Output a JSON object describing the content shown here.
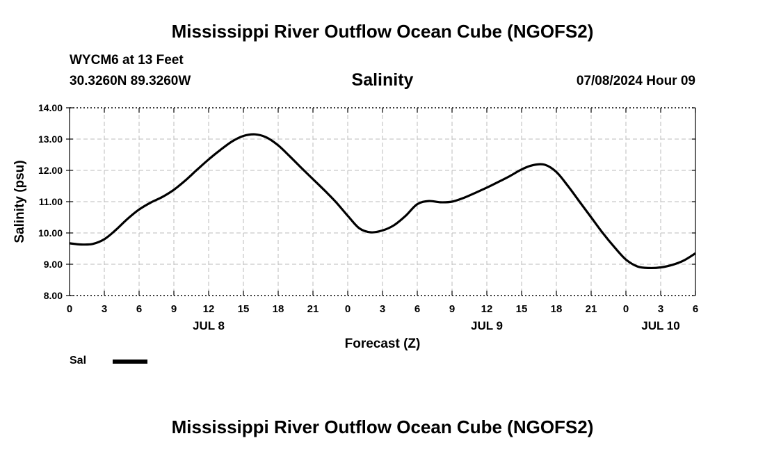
{
  "header": {
    "main_title": "Mississippi River Outflow Ocean Cube (NGOFS2)",
    "station": "WYCM6 at 13 Feet",
    "coords": "30.3260N  89.3260W",
    "subtitle": "Salinity",
    "datetime": "07/08/2024 Hour 09"
  },
  "footer": {
    "title": "Mississippi River Outflow Ocean Cube (NGOFS2)"
  },
  "legend": {
    "label": "Sal",
    "color": "#000000"
  },
  "chart_data": {
    "type": "line",
    "title": "Salinity",
    "xlabel": "Forecast (Z)",
    "ylabel": "Salinity (psu)",
    "xlim": [
      0,
      54
    ],
    "ylim": [
      8,
      14
    ],
    "grid": true,
    "yticks": [
      8,
      9,
      10,
      11,
      12,
      13,
      14
    ],
    "ytick_labels": [
      "8.00",
      "9.00",
      "10.00",
      "11.00",
      "12.00",
      "13.00",
      "14.00"
    ],
    "xticks": [
      0,
      3,
      6,
      9,
      12,
      15,
      18,
      21,
      24,
      27,
      30,
      33,
      36,
      39,
      42,
      45,
      48,
      51,
      54
    ],
    "xtick_labels": [
      "0",
      "3",
      "6",
      "9",
      "12",
      "15",
      "18",
      "21",
      "0",
      "3",
      "6",
      "9",
      "12",
      "15",
      "18",
      "21",
      "0",
      "3",
      "6"
    ],
    "day_labels": [
      {
        "x": 12,
        "label": "JUL 8"
      },
      {
        "x": 36,
        "label": "JUL 9"
      },
      {
        "x": 51,
        "label": "JUL 10"
      }
    ],
    "series": [
      {
        "name": "Sal",
        "x": [
          0,
          1,
          2,
          3,
          4,
          5,
          6,
          7,
          8,
          9,
          10,
          11,
          12,
          13,
          14,
          15,
          16,
          17,
          18,
          19,
          20,
          21,
          22,
          23,
          24,
          25,
          26,
          27,
          28,
          29,
          30,
          31,
          32,
          33,
          34,
          35,
          36,
          37,
          38,
          39,
          40,
          41,
          42,
          43,
          44,
          45,
          46,
          47,
          48,
          49,
          50,
          51,
          52,
          53,
          54
        ],
        "values": [
          9.67,
          9.63,
          9.65,
          9.8,
          10.1,
          10.45,
          10.75,
          10.97,
          11.15,
          11.38,
          11.68,
          12.02,
          12.35,
          12.65,
          12.92,
          13.1,
          13.15,
          13.05,
          12.8,
          12.45,
          12.08,
          11.72,
          11.36,
          10.98,
          10.55,
          10.15,
          10.02,
          10.08,
          10.25,
          10.55,
          10.92,
          11.02,
          10.98,
          11.0,
          11.12,
          11.28,
          11.45,
          11.63,
          11.82,
          12.03,
          12.17,
          12.18,
          11.95,
          11.5,
          11.0,
          10.5,
          10.0,
          9.55,
          9.15,
          8.93,
          8.88,
          8.9,
          8.98,
          9.12,
          9.35
        ]
      }
    ]
  }
}
